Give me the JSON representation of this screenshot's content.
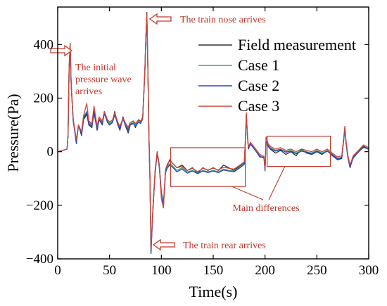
{
  "chart_data": {
    "type": "line",
    "xlabel": "Time(s)",
    "ylabel": "Pressure(Pa)",
    "xlim": [
      0,
      300
    ],
    "ylim": [
      -400,
      540
    ],
    "xticks": [
      0,
      50,
      100,
      150,
      200,
      250,
      300
    ],
    "xtick_labels": [
      "0",
      "50",
      "100",
      "150",
      "200",
      "250",
      "300"
    ],
    "yticks": [
      -400,
      -200,
      0,
      200,
      400
    ],
    "ytick_labels": [
      "−400",
      "−200",
      "0",
      "200",
      "400"
    ],
    "grid": false,
    "legend_position": "top-right",
    "series": [
      {
        "name": "Field measurement",
        "color": "#333333",
        "x": [
          0,
          5,
          9,
          10,
          11,
          12,
          13,
          15,
          18,
          20,
          23,
          25,
          28,
          30,
          33,
          35,
          38,
          40,
          43,
          45,
          48,
          50,
          53,
          55,
          58,
          60,
          63,
          65,
          68,
          70,
          73,
          75,
          78,
          80,
          82,
          84,
          85,
          86,
          87,
          88,
          89,
          90,
          92,
          94,
          96,
          98,
          100,
          102,
          104,
          106,
          108,
          110,
          115,
          120,
          125,
          130,
          135,
          140,
          145,
          150,
          155,
          160,
          165,
          170,
          175,
          180,
          181,
          182,
          183,
          184,
          186,
          188,
          190,
          195,
          199,
          200,
          201,
          203,
          205,
          210,
          215,
          220,
          225,
          230,
          235,
          240,
          245,
          250,
          255,
          260,
          265,
          270,
          274,
          276,
          277,
          278,
          280,
          282,
          285,
          290,
          295,
          300
        ],
        "y": [
          0,
          5,
          10,
          60,
          300,
          400,
          250,
          120,
          30,
          100,
          60,
          120,
          140,
          100,
          90,
          150,
          80,
          120,
          100,
          150,
          110,
          100,
          110,
          150,
          100,
          80,
          130,
          100,
          70,
          100,
          110,
          90,
          120,
          110,
          130,
          300,
          420,
          520,
          300,
          50,
          -100,
          -380,
          -200,
          -80,
          0,
          -50,
          -150,
          -200,
          -80,
          -50,
          -30,
          -40,
          -60,
          -50,
          -70,
          -60,
          -80,
          -60,
          -70,
          -60,
          -70,
          -50,
          -60,
          -70,
          -55,
          -40,
          40,
          140,
          60,
          10,
          30,
          20,
          10,
          -20,
          -20,
          -70,
          40,
          20,
          10,
          -5,
          5,
          -10,
          0,
          -15,
          10,
          -5,
          -10,
          0,
          -10,
          5,
          -15,
          -30,
          -25,
          50,
          90,
          40,
          -20,
          -60,
          -20,
          0,
          20,
          10
        ]
      },
      {
        "name": "Case 1",
        "color": "#2eaa6f",
        "x": [
          0,
          5,
          9,
          10,
          11,
          12,
          13,
          15,
          18,
          20,
          23,
          25,
          28,
          30,
          33,
          35,
          38,
          40,
          43,
          45,
          48,
          50,
          53,
          55,
          58,
          60,
          63,
          65,
          68,
          70,
          73,
          75,
          78,
          80,
          82,
          84,
          85,
          86,
          87,
          88,
          89,
          90,
          92,
          94,
          96,
          98,
          100,
          102,
          104,
          106,
          108,
          110,
          115,
          120,
          125,
          130,
          135,
          140,
          145,
          150,
          155,
          160,
          165,
          170,
          175,
          180,
          181,
          182,
          183,
          184,
          186,
          188,
          190,
          195,
          199,
          200,
          201,
          203,
          205,
          210,
          215,
          220,
          225,
          230,
          235,
          240,
          245,
          250,
          255,
          260,
          265,
          270,
          274,
          276,
          277,
          278,
          280,
          282,
          285,
          290,
          295,
          300
        ],
        "y": [
          0,
          5,
          10,
          60,
          310,
          395,
          240,
          110,
          40,
          95,
          70,
          130,
          150,
          110,
          100,
          140,
          90,
          125,
          110,
          140,
          115,
          105,
          115,
          135,
          105,
          90,
          120,
          105,
          85,
          105,
          110,
          100,
          115,
          110,
          120,
          290,
          410,
          505,
          300,
          60,
          -100,
          -360,
          -210,
          -70,
          -10,
          -60,
          -160,
          -190,
          -70,
          -55,
          -45,
          -50,
          -70,
          -60,
          -75,
          -70,
          -80,
          -70,
          -75,
          -70,
          -75,
          -65,
          -70,
          -72,
          -60,
          -45,
          35,
          130,
          60,
          15,
          30,
          20,
          10,
          -15,
          -25,
          -70,
          35,
          25,
          15,
          5,
          10,
          0,
          5,
          -5,
          5,
          0,
          -5,
          5,
          -5,
          5,
          -10,
          -25,
          -20,
          45,
          85,
          35,
          -25,
          -55,
          -25,
          0,
          15,
          10
        ]
      },
      {
        "name": "Case 2",
        "color": "#2b44c8",
        "x": [
          0,
          5,
          9,
          10,
          11,
          12,
          13,
          15,
          18,
          20,
          23,
          25,
          28,
          30,
          33,
          35,
          38,
          40,
          43,
          45,
          48,
          50,
          53,
          55,
          58,
          60,
          63,
          65,
          68,
          70,
          73,
          75,
          78,
          80,
          82,
          84,
          85,
          86,
          87,
          88,
          89,
          90,
          92,
          94,
          96,
          98,
          100,
          102,
          104,
          106,
          108,
          110,
          115,
          120,
          125,
          130,
          135,
          140,
          145,
          150,
          155,
          160,
          165,
          170,
          175,
          180,
          181,
          182,
          183,
          184,
          186,
          188,
          190,
          195,
          199,
          200,
          201,
          203,
          205,
          210,
          215,
          220,
          225,
          230,
          235,
          240,
          245,
          250,
          255,
          260,
          265,
          270,
          274,
          276,
          277,
          278,
          280,
          282,
          285,
          290,
          295,
          300
        ],
        "y": [
          0,
          5,
          10,
          60,
          305,
          400,
          245,
          115,
          35,
          100,
          65,
          125,
          145,
          105,
          95,
          145,
          85,
          120,
          105,
          145,
          110,
          100,
          110,
          140,
          100,
          85,
          125,
          100,
          80,
          100,
          105,
          95,
          110,
          105,
          125,
          295,
          415,
          510,
          305,
          55,
          -105,
          -365,
          -215,
          -75,
          -5,
          -55,
          -155,
          -195,
          -75,
          -60,
          -50,
          -55,
          -75,
          -65,
          -80,
          -72,
          -82,
          -72,
          -78,
          -72,
          -78,
          -68,
          -72,
          -75,
          -62,
          -48,
          38,
          135,
          62,
          12,
          28,
          18,
          8,
          -18,
          -22,
          -72,
          38,
          22,
          12,
          2,
          8,
          -2,
          2,
          -8,
          2,
          -2,
          -8,
          2,
          -8,
          2,
          -12,
          -28,
          -22,
          48,
          88,
          38,
          -22,
          -58,
          -22,
          -2,
          18,
          8
        ]
      },
      {
        "name": "Case 3",
        "color": "#d0453a",
        "x": [
          0,
          5,
          9,
          10,
          11,
          12,
          13,
          15,
          18,
          20,
          23,
          25,
          28,
          30,
          33,
          35,
          38,
          40,
          43,
          45,
          48,
          50,
          53,
          55,
          58,
          60,
          63,
          65,
          68,
          70,
          73,
          75,
          78,
          80,
          82,
          84,
          85,
          86,
          87,
          88,
          89,
          90,
          92,
          94,
          96,
          98,
          100,
          102,
          104,
          106,
          108,
          110,
          115,
          120,
          125,
          130,
          135,
          140,
          145,
          150,
          155,
          160,
          165,
          170,
          175,
          180,
          181,
          182,
          183,
          184,
          186,
          188,
          190,
          195,
          199,
          200,
          201,
          203,
          205,
          210,
          215,
          220,
          225,
          230,
          235,
          240,
          245,
          250,
          255,
          260,
          265,
          270,
          274,
          276,
          277,
          278,
          280,
          282,
          285,
          290,
          295,
          300
        ],
        "y": [
          0,
          5,
          10,
          65,
          320,
          405,
          250,
          120,
          45,
          100,
          75,
          135,
          180,
          115,
          105,
          170,
          95,
          130,
          115,
          150,
          120,
          110,
          120,
          145,
          110,
          95,
          125,
          110,
          90,
          110,
          115,
          105,
          120,
          115,
          125,
          300,
          420,
          515,
          310,
          65,
          -95,
          -355,
          -205,
          -65,
          0,
          -55,
          -175,
          -210,
          -65,
          -45,
          -35,
          -40,
          -60,
          -55,
          -70,
          -62,
          -75,
          -62,
          -68,
          -62,
          -68,
          -58,
          -62,
          -65,
          -52,
          -38,
          45,
          145,
          65,
          18,
          35,
          25,
          15,
          -10,
          -18,
          -65,
          55,
          30,
          20,
          10,
          15,
          5,
          10,
          0,
          10,
          5,
          0,
          10,
          0,
          10,
          -5,
          -20,
          -15,
          55,
          95,
          45,
          -15,
          -50,
          -15,
          5,
          25,
          15
        ]
      }
    ],
    "annotations": [
      {
        "text": "The train nose arrives"
      },
      {
        "text": "The initial pressure wave arrives"
      },
      {
        "text": "The train rear arrives"
      },
      {
        "text": "Main differences"
      }
    ]
  }
}
